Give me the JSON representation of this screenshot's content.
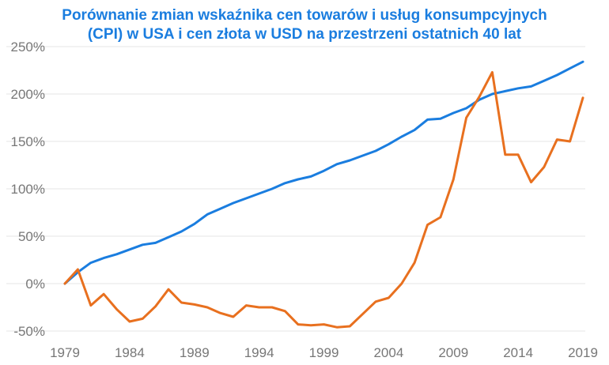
{
  "chart_data": {
    "type": "line",
    "title_lines": [
      "Porównanie zmian wskaźnika cen towarów i usług konsumpcyjnych",
      "(CPI) w USA i cen złota w USD na przestrzeni ostatnich 40 lat"
    ],
    "xlabel": "",
    "ylabel": "",
    "x": [
      1979,
      1980,
      1981,
      1982,
      1983,
      1984,
      1985,
      1986,
      1987,
      1988,
      1989,
      1990,
      1991,
      1992,
      1993,
      1994,
      1995,
      1996,
      1997,
      1998,
      1999,
      2000,
      2001,
      2002,
      2003,
      2004,
      2005,
      2006,
      2007,
      2008,
      2009,
      2010,
      2011,
      2012,
      2013,
      2014,
      2015,
      2016,
      2017,
      2018,
      2019
    ],
    "x_ticks": [
      "1979",
      "1984",
      "1989",
      "1994",
      "1999",
      "2004",
      "2009",
      "2014",
      "2019"
    ],
    "y_ticks": [
      "-50%",
      "0%",
      "50%",
      "100%",
      "150%",
      "200%",
      "250%"
    ],
    "y_tick_values": [
      -50,
      0,
      50,
      100,
      150,
      200,
      250
    ],
    "xlim": [
      1979,
      2019
    ],
    "ylim": [
      -50,
      250
    ],
    "grid": true,
    "series": [
      {
        "color": "#1a7ddf",
        "values": [
          0,
          12,
          22,
          27,
          31,
          36,
          41,
          43,
          49,
          55,
          63,
          73,
          79,
          85,
          90,
          95,
          100,
          106,
          110,
          113,
          119,
          126,
          130,
          135,
          140,
          147,
          155,
          162,
          173,
          174,
          180,
          185,
          194,
          200,
          203,
          206,
          208,
          214,
          220,
          227,
          234
        ]
      },
      {
        "color": "#e8701f",
        "values": [
          0,
          15,
          -23,
          -11,
          -27,
          -40,
          -37,
          -24,
          -6,
          -20,
          -22,
          -25,
          -31,
          -35,
          -23,
          -25,
          -25,
          -29,
          -43,
          -44,
          -43,
          -46,
          -45,
          -32,
          -19,
          -15,
          0,
          22,
          62,
          70,
          110,
          175,
          197,
          223,
          136,
          136,
          107,
          123,
          152,
          150,
          196
        ]
      }
    ]
  }
}
